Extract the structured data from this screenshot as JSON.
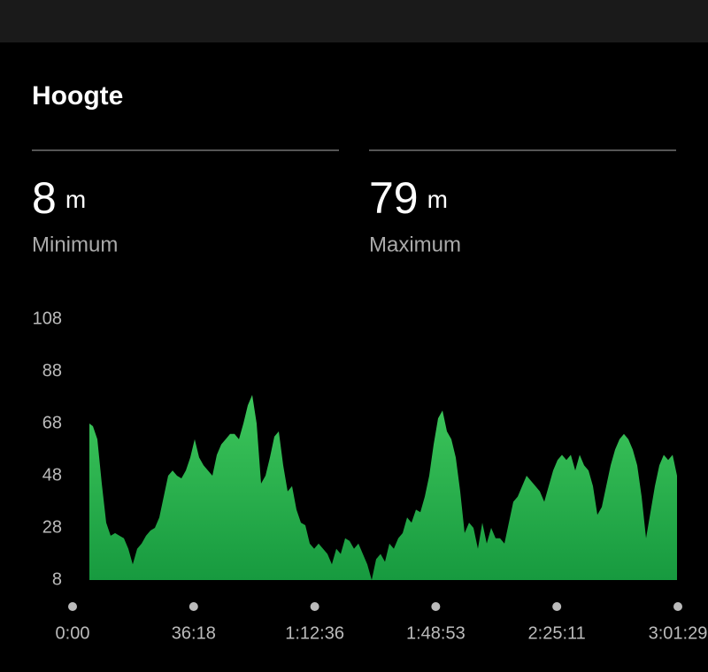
{
  "header": {
    "title": "Hoogte"
  },
  "stats": [
    {
      "value": 8,
      "unit": "m",
      "label": "Minimum"
    },
    {
      "value": 79,
      "unit": "m",
      "label": "Maximum"
    }
  ],
  "chart_data": {
    "type": "area",
    "color": "#2fb552",
    "xlim": [
      0,
      10889
    ],
    "ylim": [
      8,
      108
    ],
    "yticks": [
      8,
      28,
      48,
      68,
      88,
      108
    ],
    "xticks": [
      {
        "value": 0,
        "label": "0:00"
      },
      {
        "value": 2178,
        "label": "36:18"
      },
      {
        "value": 4356,
        "label": "1:12:36"
      },
      {
        "value": 6533,
        "label": "1:48:53"
      },
      {
        "value": 8711,
        "label": "2:25:11"
      },
      {
        "value": 10889,
        "label": "3:01:29"
      }
    ],
    "grid": false,
    "x": [
      302,
      366,
      446,
      525,
      605,
      685,
      764,
      844,
      923,
      1003,
      1083,
      1162,
      1242,
      1321,
      1401,
      1481,
      1560,
      1640,
      1719,
      1799,
      1879,
      1958,
      2038,
      2117,
      2197,
      2277,
      2356,
      2436,
      2515,
      2595,
      2675,
      2754,
      2834,
      2913,
      2993,
      3073,
      3152,
      3232,
      3311,
      3391,
      3471,
      3550,
      3630,
      3709,
      3789,
      3869,
      3948,
      4028,
      4107,
      4187,
      4267,
      4346,
      4426,
      4505,
      4585,
      4665,
      4744,
      4824,
      4903,
      4983,
      5063,
      5142,
      5222,
      5301,
      5381,
      5461,
      5540,
      5620,
      5699,
      5779,
      5859,
      5938,
      6018,
      6097,
      6177,
      6257,
      6336,
      6416,
      6495,
      6575,
      6655,
      6734,
      6814,
      6893,
      6973,
      7053,
      7132,
      7212,
      7291,
      7371,
      7451,
      7530,
      7610,
      7689,
      7769,
      7849,
      7928,
      8008,
      8087,
      8167,
      8247,
      8326,
      8406,
      8485,
      8565,
      8645,
      8724,
      8804,
      8883,
      8963,
      9043,
      9122,
      9202,
      9281,
      9361,
      9441,
      9520,
      9600,
      9679,
      9759,
      9839,
      9918,
      9998,
      10077,
      10157,
      10237,
      10316,
      10396,
      10475,
      10555,
      10635,
      10714,
      10794,
      10873
    ],
    "values": [
      68,
      67,
      62,
      45,
      30,
      25,
      26,
      25,
      24,
      20,
      14,
      20,
      22,
      25,
      27,
      28,
      32,
      40,
      48,
      50,
      48,
      47,
      50,
      55,
      62,
      55,
      52,
      50,
      48,
      56,
      60,
      62,
      64,
      64,
      62,
      68,
      75,
      79,
      68,
      45,
      48,
      55,
      63,
      65,
      52,
      42,
      44,
      35,
      30,
      29,
      22,
      20,
      22,
      20,
      18,
      14,
      20,
      18,
      24,
      23,
      20,
      22,
      18,
      14,
      8,
      16,
      18,
      15,
      22,
      20,
      24,
      26,
      32,
      30,
      35,
      34,
      40,
      48,
      60,
      70,
      73,
      65,
      62,
      55,
      42,
      26,
      30,
      28,
      20,
      30,
      22,
      28,
      24,
      24,
      22,
      30,
      38,
      40,
      44,
      48,
      46,
      44,
      42,
      38,
      44,
      50,
      54,
      56,
      54,
      56,
      50,
      56,
      52,
      50,
      44,
      33,
      36,
      44,
      52,
      58,
      62,
      64,
      62,
      58,
      52,
      40,
      24,
      34,
      44,
      52,
      56,
      54,
      56,
      48
    ]
  }
}
